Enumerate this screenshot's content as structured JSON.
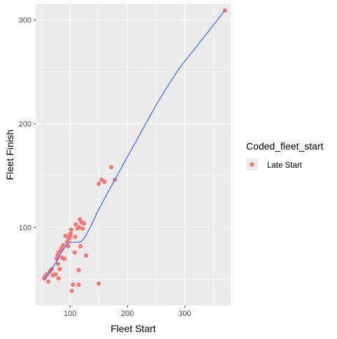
{
  "chart_data": {
    "type": "scatter",
    "xlabel": "Fleet Start",
    "ylabel": "Fleet Finish",
    "xlim": [
      40,
      380
    ],
    "ylim": [
      25,
      315
    ],
    "x_ticks": [
      100,
      200,
      300
    ],
    "y_ticks": [
      100,
      200,
      300
    ],
    "x_tick_labels": [
      "100",
      "200",
      "300"
    ],
    "y_tick_labels": [
      "100",
      "200",
      "300"
    ],
    "grid": true,
    "legend": {
      "title": "Coded_fleet_start",
      "position": "right",
      "entries": [
        "Late Start"
      ]
    },
    "series": [
      {
        "name": "Late Start",
        "color": "#F8766D",
        "points": [
          [
            55,
            51
          ],
          [
            57,
            53
          ],
          [
            60,
            55
          ],
          [
            62,
            48
          ],
          [
            65,
            58
          ],
          [
            68,
            60
          ],
          [
            70,
            54
          ],
          [
            75,
            55
          ],
          [
            77,
            70
          ],
          [
            78,
            73
          ],
          [
            79,
            65
          ],
          [
            80,
            51
          ],
          [
            80,
            76
          ],
          [
            82,
            60
          ],
          [
            84,
            78
          ],
          [
            85,
            80
          ],
          [
            86,
            71
          ],
          [
            88,
            83
          ],
          [
            90,
            70
          ],
          [
            92,
            92
          ],
          [
            95,
            86
          ],
          [
            97,
            82
          ],
          [
            98,
            89
          ],
          [
            99,
            91
          ],
          [
            100,
            93
          ],
          [
            101,
            94
          ],
          [
            102,
            98
          ],
          [
            103,
            39
          ],
          [
            105,
            45
          ],
          [
            108,
            76
          ],
          [
            109,
            91
          ],
          [
            110,
            103
          ],
          [
            113,
            99
          ],
          [
            115,
            59
          ],
          [
            115,
            45
          ],
          [
            116,
            100
          ],
          [
            117,
            108
          ],
          [
            118,
            82
          ],
          [
            120,
            105
          ],
          [
            122,
            99
          ],
          [
            124,
            104
          ],
          [
            128,
            73
          ],
          [
            150,
            46
          ],
          [
            150,
            142
          ],
          [
            155,
            146
          ],
          [
            160,
            144
          ],
          [
            172,
            158
          ],
          [
            178,
            146
          ],
          [
            370,
            309
          ]
        ]
      }
    ],
    "smooth": {
      "color": "#3366FF",
      "points": [
        [
          55,
          50
        ],
        [
          65,
          57
        ],
        [
          75,
          66
        ],
        [
          85,
          76
        ],
        [
          95,
          84
        ],
        [
          100,
          86
        ],
        [
          110,
          86
        ],
        [
          118,
          86
        ],
        [
          125,
          90
        ],
        [
          135,
          100
        ],
        [
          145,
          112
        ],
        [
          160,
          128
        ],
        [
          175,
          143
        ],
        [
          190,
          158
        ],
        [
          210,
          178
        ],
        [
          230,
          198
        ],
        [
          250,
          218
        ],
        [
          270,
          236
        ],
        [
          290,
          253
        ],
        [
          310,
          267
        ],
        [
          330,
          281
        ],
        [
          350,
          295
        ],
        [
          370,
          309
        ]
      ]
    }
  }
}
